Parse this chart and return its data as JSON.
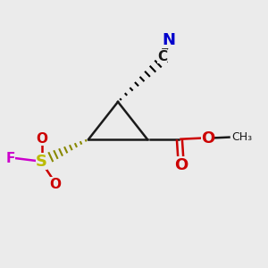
{
  "bg_color": "#ebebeb",
  "bond_color": "#1a1a1a",
  "N_color": "#0000cc",
  "O_color": "#cc0000",
  "S_color": "#bbbb00",
  "F_color": "#cc00cc",
  "C1": [
    0.55,
    0.48
  ],
  "C2": [
    0.33,
    0.48
  ],
  "C3": [
    0.44,
    0.62
  ],
  "lw": 1.8,
  "fs_large": 13,
  "fs_med": 11,
  "fs_small": 9
}
